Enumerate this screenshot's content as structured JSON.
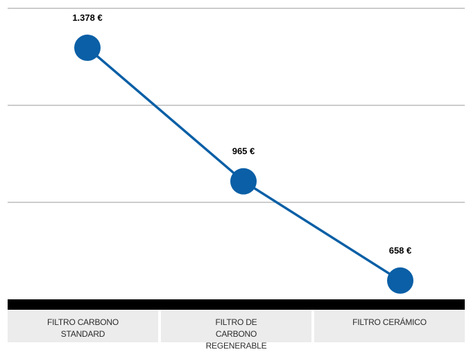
{
  "chart_data": {
    "type": "line",
    "categories": [
      "FILTRO CARBONO STANDARD",
      "FILTRO DE CARBONO REGENERABLE",
      "FILTRO CERÁMICO"
    ],
    "series": [
      {
        "values": [
          1378,
          965,
          658
        ],
        "data_labels": [
          "1.378 €",
          "965 €",
          "658 €"
        ]
      }
    ],
    "ylim": [
      600,
      1500
    ],
    "gridlines": [
      900,
      1200,
      1500
    ],
    "grid": true,
    "colors": {
      "line": "#0a5fa6",
      "marker": "#0a5fa6",
      "grid": "#cccccc",
      "baseline": "#000000",
      "category_background": "#ececec"
    }
  }
}
